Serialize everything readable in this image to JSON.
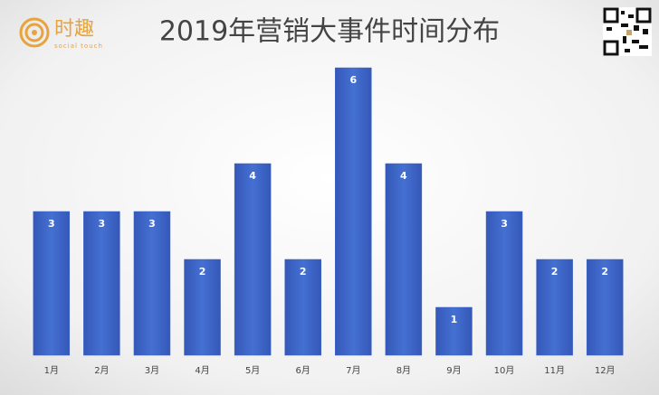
{
  "logo": {
    "name": "时趣",
    "tagline": "social touch"
  },
  "chart_data": {
    "type": "bar",
    "title": "2019年营销大事件时间分布",
    "categories": [
      "1月",
      "2月",
      "3月",
      "4月",
      "5月",
      "6月",
      "7月",
      "8月",
      "9月",
      "10月",
      "11月",
      "12月"
    ],
    "values": [
      3,
      3,
      3,
      2,
      4,
      2,
      6,
      4,
      1,
      3,
      2,
      2
    ],
    "color": "#3d63c6"
  }
}
